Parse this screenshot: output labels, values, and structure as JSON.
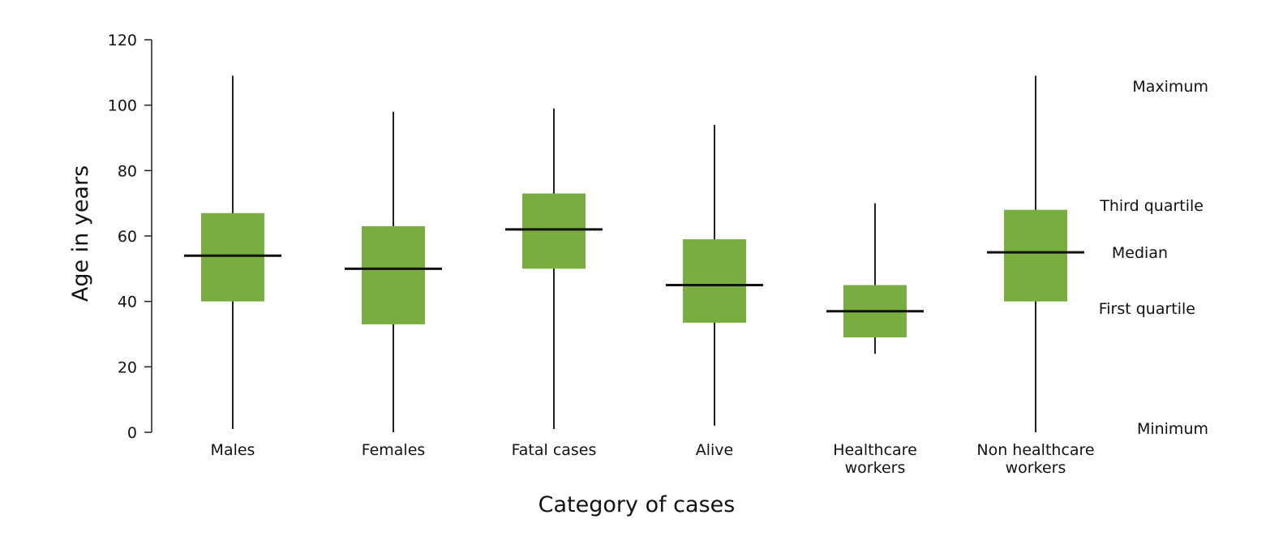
{
  "chart_data": {
    "type": "box",
    "title": "",
    "xlabel": "Category of cases",
    "ylabel": "Age in years",
    "ylim": [
      0,
      120
    ],
    "yticks": [
      0,
      20,
      40,
      60,
      80,
      100,
      120
    ],
    "grid": false,
    "box_color": "#7aad3f",
    "categories": [
      {
        "label": [
          "Males"
        ],
        "min": 1,
        "q1": 40,
        "median": 54,
        "q3": 67,
        "max": 109
      },
      {
        "label": [
          "Females"
        ],
        "min": 0,
        "q1": 33,
        "median": 50,
        "q3": 63,
        "max": 98
      },
      {
        "label": [
          "Fatal cases"
        ],
        "min": 1,
        "q1": 50,
        "median": 62,
        "q3": 73,
        "max": 99
      },
      {
        "label": [
          "Alive"
        ],
        "min": 2,
        "q1": 33.5,
        "median": 45,
        "q3": 59,
        "max": 94
      },
      {
        "label": [
          "Healthcare",
          "workers"
        ],
        "min": 24,
        "q1": 29,
        "median": 37,
        "q3": 45,
        "max": 70
      },
      {
        "label": [
          "Non healthcare",
          "workers"
        ],
        "min": 0,
        "q1": 40,
        "median": 55,
        "q3": 68,
        "max": 109
      }
    ],
    "legend": {
      "maximum": "Maximum",
      "third_quartile": "Third quartile",
      "median": "Median",
      "first_quartile": "First quartile",
      "minimum": "Minimum"
    }
  }
}
